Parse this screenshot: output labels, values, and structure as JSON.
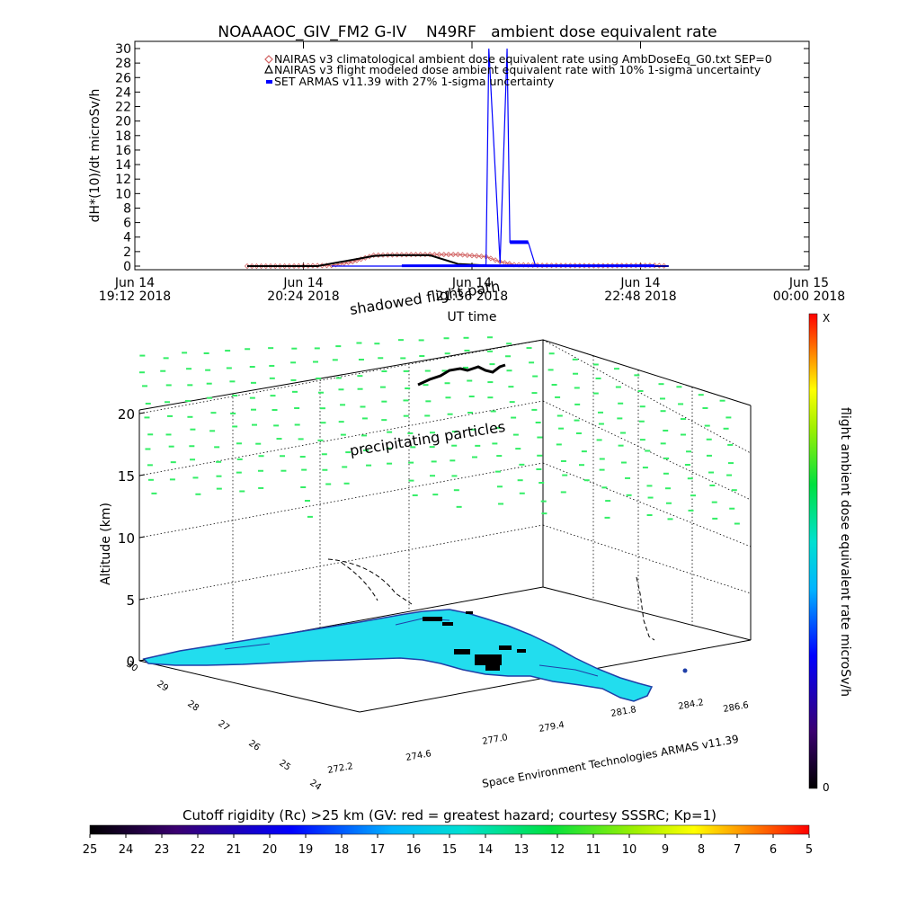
{
  "chart_data": [
    {
      "type": "line",
      "title": "NOAAAOC_GIV_FM2 G-IV    N49RF   ambient dose equivalent rate",
      "ylabel": "dH*(10)/dt microSv/h",
      "xlabel": "UT time",
      "ylim": [
        0,
        30
      ],
      "yticks": [
        "0",
        "2",
        "4",
        "6",
        "8",
        "10",
        "12",
        "14",
        "16",
        "18",
        "20",
        "22",
        "24",
        "26",
        "28",
        "30"
      ],
      "xticks": [
        {
          "top": "Jun 14",
          "bottom": "19:12 2018"
        },
        {
          "top": "Jun 14",
          "bottom": "20:24 2018"
        },
        {
          "top": "Jun 14",
          "bottom": "21:36 2018"
        },
        {
          "top": "Jun 14",
          "bottom": "22:48 2018"
        },
        {
          "top": "Jun 15",
          "bottom": "00:00 2018"
        }
      ],
      "legend_position": "top-right",
      "series": [
        {
          "name": "NAIRAS v3 climatological ambient dose equivalent rate using AmbDoseEq_G0.txt SEP=0",
          "color": "#d06060",
          "marker": "diamond",
          "x_hours": [
            20.0,
            20.3,
            20.6,
            20.75,
            20.9,
            21.2,
            21.5,
            21.7,
            21.8,
            21.9,
            22.1,
            22.5,
            22.9,
            23.0
          ],
          "values": [
            0.0,
            0.0,
            0.1,
            0.6,
            1.5,
            1.6,
            1.6,
            1.3,
            0.6,
            0.2,
            0.1,
            0.05,
            0.1,
            0.0
          ]
        },
        {
          "name": "NAIRAS v3 flight modeled dose ambient equivalent rate with 10% 1-sigma uncertainty",
          "color": "#000000",
          "marker": "triangle",
          "x_hours": [
            20.0,
            20.5,
            20.9,
            21.0,
            21.3,
            21.5,
            21.7,
            22.0,
            22.5,
            23.0
          ],
          "values": [
            0.0,
            0.0,
            1.4,
            1.5,
            1.5,
            0.3,
            0.1,
            0.0,
            0.0,
            0.0
          ]
        },
        {
          "name": "SET ARMAS v11.39 with 27% 1-sigma uncertainty",
          "color": "#0000ff",
          "marker": "square",
          "x_hours": [
            20.6,
            21.0,
            21.4,
            21.7,
            21.72,
            21.8,
            21.85,
            21.87,
            22.0,
            22.05,
            22.1,
            22.5,
            23.0
          ],
          "values": [
            0.0,
            0.0,
            0.0,
            0.2,
            30.0,
            0.4,
            30.0,
            3.3,
            3.3,
            0.2,
            0.1,
            0.05,
            0.0
          ]
        }
      ]
    },
    {
      "type": "scatter",
      "subtype": "3d-map",
      "zlabel": "Altitude (km)",
      "zticks": [
        "0",
        "5",
        "10",
        "15",
        "20"
      ],
      "lat_ticks": [
        "30",
        "29",
        "28",
        "27",
        "26",
        "25",
        "24"
      ],
      "lon_ticks": [
        "272.2",
        "274.6",
        "277.0",
        "279.4",
        "281.8",
        "284.2",
        "286.6"
      ],
      "annotations": {
        "shadowed": "shadowed flight path",
        "precipitating": "precipitating particles",
        "credit": "Space Environment Technologies ARMAS v11.39"
      },
      "right_colorbar": {
        "label": "flight ambient dose equivalent rate microSv/h",
        "top": "X",
        "bottom": "0"
      },
      "bottom_colorbar": {
        "title": "Cutoff rigidity (Rc) >25 km (GV: red = greatest hazard; courtesy SSSRC; Kp=1)",
        "ticks": [
          "25",
          "24",
          "23",
          "22",
          "21",
          "20",
          "19",
          "18",
          "17",
          "16",
          "15",
          "14",
          "13",
          "12",
          "11",
          "10",
          "9",
          "8",
          "7",
          "6",
          "5"
        ]
      },
      "colors": {
        "land": "#22ddee",
        "particles": "#33ee66"
      }
    }
  ]
}
